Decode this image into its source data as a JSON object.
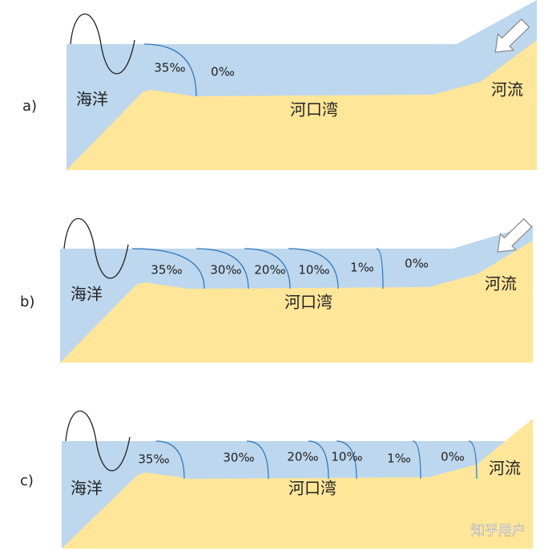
{
  "panels": [
    {
      "label": "a)",
      "sea": "海洋",
      "estuary": "河口湾",
      "river": "河流",
      "salinity": [
        "35‰",
        "0‰"
      ]
    },
    {
      "label": "b)",
      "sea": "海洋",
      "estuary": "河口湾",
      "river": "河流",
      "salinity": [
        "35‰",
        "30‰",
        "20‰",
        "10‰",
        "1‰",
        "0‰"
      ]
    },
    {
      "label": "c)",
      "sea": "海洋",
      "estuary": "河口湾",
      "river": "河流",
      "salinity": [
        "35‰",
        "30‰",
        "20‰",
        "10‰",
        "1‰",
        "0‰"
      ]
    }
  ],
  "watermark": "知乎用户"
}
